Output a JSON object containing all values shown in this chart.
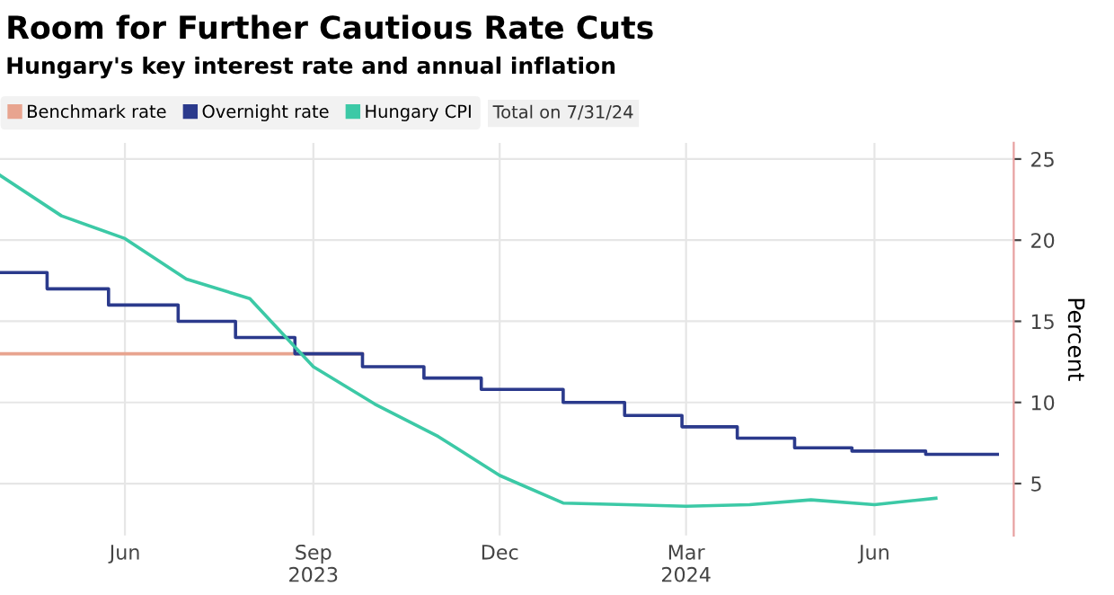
{
  "chart_data": {
    "type": "line",
    "title": "Room for Further Cautious Rate Cuts",
    "subtitle": "Hungary's key interest rate and annual inflation",
    "ylabel": "Percent",
    "annotations": [
      "Total on 7/31/24"
    ],
    "series": [
      {
        "name": "Benchmark rate",
        "color": "#e8a48f",
        "type": "step",
        "x": [
          "2023-04-01",
          "2023-09-25"
        ],
        "values": [
          13,
          13
        ]
      },
      {
        "name": "Overnight rate",
        "color": "#2b3a8c",
        "type": "step",
        "x": [
          "2023-04-01",
          "2023-04-24",
          "2023-05-24",
          "2023-06-27",
          "2023-07-25",
          "2023-08-23",
          "2023-09-25",
          "2023-10-25",
          "2023-11-22",
          "2024-01-01",
          "2024-01-31",
          "2024-02-28",
          "2024-03-26",
          "2024-04-23",
          "2024-05-21",
          "2024-06-26",
          "2024-07-31"
        ],
        "values": [
          18,
          17,
          16,
          15,
          14,
          13,
          12.2,
          11.5,
          10.8,
          10,
          9.2,
          8.5,
          7.8,
          7.2,
          7,
          6.8,
          6.8
        ]
      },
      {
        "name": "Hungary CPI",
        "color": "#3cc9a6",
        "x": [
          "2023-04-01",
          "2023-05-01",
          "2023-06-01",
          "2023-07-01",
          "2023-08-01",
          "2023-09-01",
          "2023-10-01",
          "2023-11-01",
          "2023-12-01",
          "2024-01-01",
          "2024-02-01",
          "2024-03-01",
          "2024-04-01",
          "2024-05-01",
          "2024-06-01",
          "2024-07-01"
        ],
        "values": [
          24.0,
          21.5,
          20.1,
          17.6,
          16.4,
          12.2,
          9.9,
          7.9,
          5.5,
          3.8,
          3.7,
          3.6,
          3.7,
          4.0,
          3.7,
          4.1
        ]
      }
    ],
    "xlim": [
      "2023-04-01",
      "2024-08-08"
    ],
    "xticks": [
      {
        "value": "2023-06-01",
        "label": "Jun"
      },
      {
        "value": "2023-09-01",
        "label": "Sep\n2023"
      },
      {
        "value": "2023-12-01",
        "label": "Dec"
      },
      {
        "value": "2024-03-01",
        "label": "Mar\n2024"
      },
      {
        "value": "2024-06-01",
        "label": "Jun"
      }
    ],
    "ylim": [
      1.8,
      26
    ],
    "yticks": [
      5,
      10,
      15,
      20,
      25
    ],
    "grid": true,
    "legend": "top left"
  }
}
